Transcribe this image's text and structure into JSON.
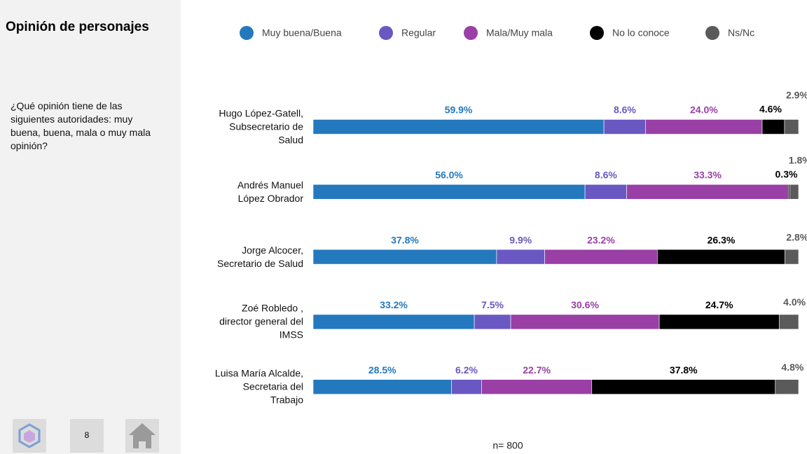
{
  "sidebar": {
    "title": "Opinión de personajes",
    "question": "¿Qué opinión tiene de las siguientes autoridades: muy buena, buena, mala o muy mala opinión?",
    "page_number": "8"
  },
  "chart_data": {
    "type": "bar",
    "stacked": true,
    "orientation": "horizontal",
    "categories": [
      "Hugo López-Gatell,\nSubsecretario de\nSalud",
      "Andrés Manuel\nLópez Obrador",
      "Jorge Alcocer,\nSecretario de Salud",
      "Zoé  Robledo ,\ndirector general del\nIMSS",
      "Luisa María Alcalde,\nSecretaria del\nTrabajo"
    ],
    "series": [
      {
        "name": "Muy buena/Buena",
        "color": "#2479be",
        "values": [
          59.9,
          56.0,
          37.8,
          33.2,
          28.5
        ],
        "value_labels": [
          "59.9%",
          "56.0%",
          "37.8%",
          "33.2%",
          "28.5%"
        ]
      },
      {
        "name": "Regular",
        "color": "#6a58c2",
        "values": [
          8.6,
          8.6,
          9.9,
          7.5,
          6.2
        ],
        "value_labels": [
          "8.6%",
          "8.6%",
          "9.9%",
          "7.5%",
          "6.2%"
        ]
      },
      {
        "name": "Mala/Muy mala",
        "color": "#9a3fa6",
        "values": [
          24.0,
          33.3,
          23.2,
          30.6,
          22.7
        ],
        "value_labels": [
          "24.0%",
          "33.3%",
          "23.2%",
          "30.6%",
          "22.7%"
        ]
      },
      {
        "name": "No lo conoce",
        "color": "#000000",
        "values": [
          4.6,
          0.3,
          26.3,
          24.7,
          37.8
        ],
        "value_labels": [
          "4.6%",
          "0.3%",
          "26.3%",
          "24.7%",
          "37.8%"
        ]
      },
      {
        "name": "Ns/Nc",
        "color": "#5a5a5a",
        "values": [
          2.9,
          1.8,
          2.8,
          4.0,
          4.8
        ],
        "value_labels": [
          "2.9%",
          "1.8%",
          "2.8%",
          "4.0%",
          "4.8%"
        ]
      }
    ],
    "xlim": [
      0,
      100
    ],
    "note": "n= 800"
  }
}
